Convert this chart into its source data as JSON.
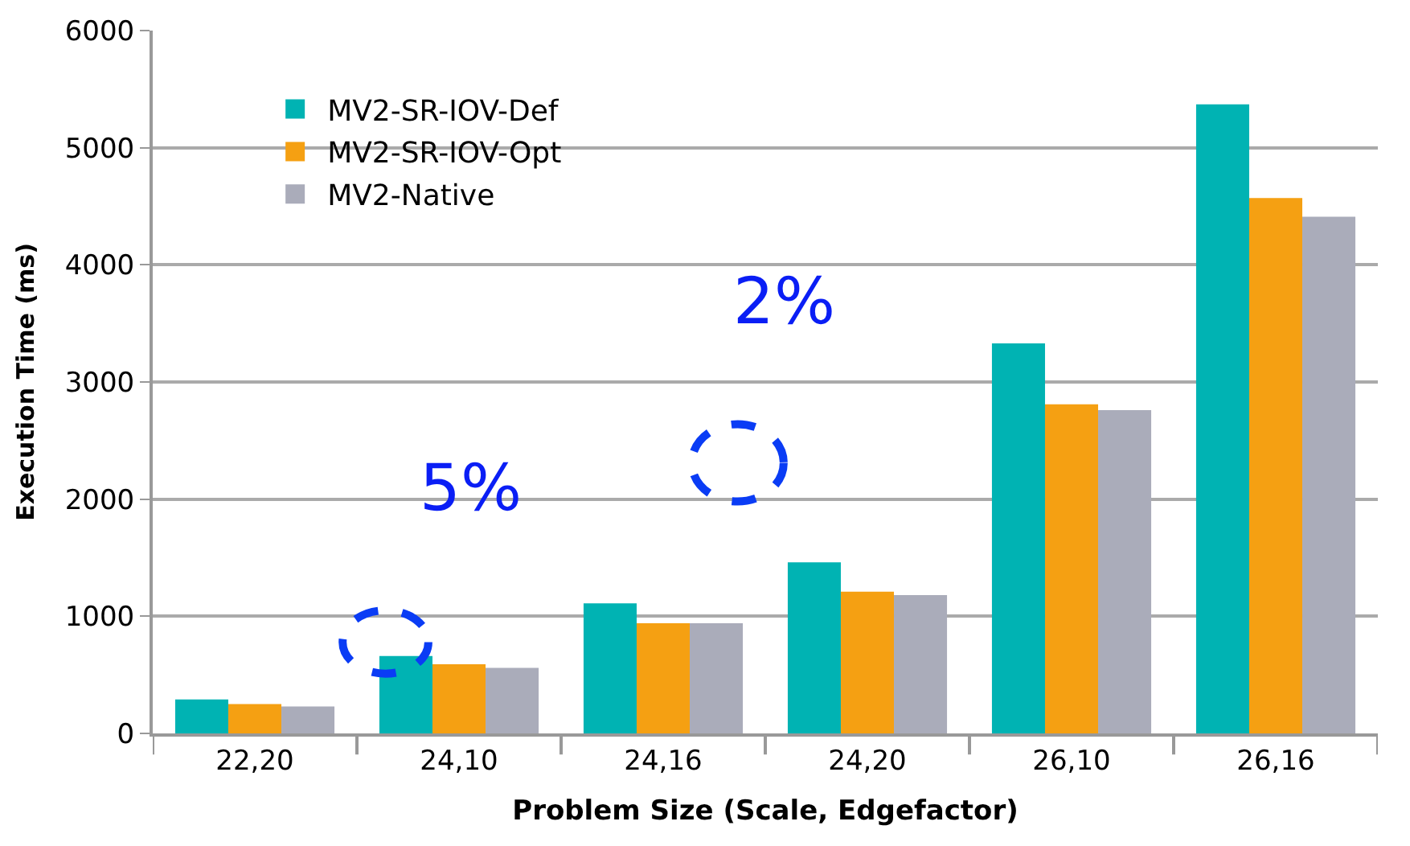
{
  "chart_data": {
    "type": "bar",
    "xlabel": "Problem Size (Scale, Edgefactor)",
    "ylabel": "Execution Time (ms)",
    "categories": [
      "22,20",
      "24,10",
      "24,16",
      "24,20",
      "26,10",
      "26,16"
    ],
    "series": [
      {
        "name": "MV2-SR-IOV-Def",
        "color": "#00b3b3",
        "values": [
          290,
          660,
          1110,
          1460,
          3330,
          5370
        ]
      },
      {
        "name": "MV2-SR-IOV-Opt",
        "color": "#f5a012",
        "values": [
          250,
          590,
          940,
          1210,
          2810,
          4570
        ]
      },
      {
        "name": "MV2-Native",
        "color": "#aaacba",
        "values": [
          230,
          560,
          940,
          1180,
          2760,
          4410
        ]
      }
    ],
    "ylim": [
      0,
      6000
    ],
    "yticks": [
      0,
      1000,
      2000,
      3000,
      4000,
      5000,
      6000
    ],
    "grid": "y",
    "legend": "top left",
    "annotations": [
      "5%",
      "2%"
    ]
  }
}
